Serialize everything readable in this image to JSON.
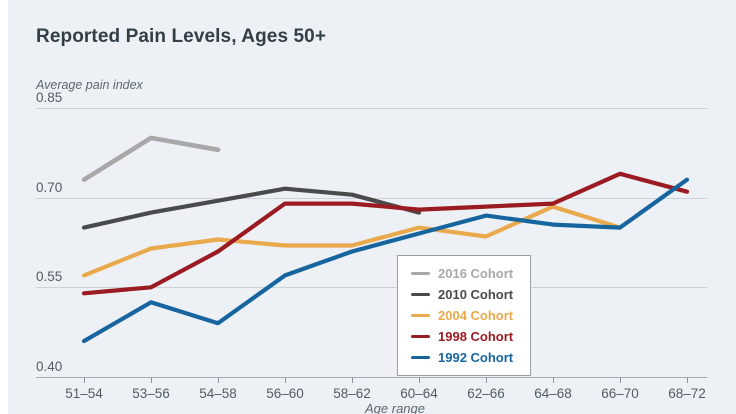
{
  "page": {
    "background": "#edf1f5",
    "left_strip_color": "#ffffff",
    "gridline_color": "#ccd2d8",
    "axis_color": "#a3aab1",
    "tick_color": "#8d949b"
  },
  "chart_data": {
    "type": "line",
    "title": "Reported Pain Levels, Ages 50+",
    "ylabel": "Average pain index",
    "xlabel": "Age range",
    "categories": [
      "51–54",
      "53–56",
      "54–58",
      "56–60",
      "58–62",
      "60–64",
      "62–66",
      "64–68",
      "66–70",
      "68–72"
    ],
    "ytick_labels": [
      "0.85",
      "0.70",
      "0.55",
      "0.40"
    ],
    "ylim": [
      0.4,
      0.85
    ],
    "grid": true,
    "legend_position": "bottom-center-box",
    "series": [
      {
        "name": "2016 Cohort",
        "color": "#a8a8a8",
        "values": [
          0.73,
          0.8,
          0.78,
          null,
          null,
          null,
          null,
          null,
          null,
          null
        ]
      },
      {
        "name": "2010 Cohort",
        "color": "#4a4a4a",
        "values": [
          0.65,
          0.675,
          0.695,
          0.715,
          0.705,
          0.675,
          null,
          null,
          null,
          null
        ]
      },
      {
        "name": "2004 Cohort",
        "color": "#e9aa4d",
        "values": [
          0.57,
          0.615,
          0.63,
          0.62,
          0.62,
          0.65,
          0.635,
          0.685,
          0.65,
          null
        ]
      },
      {
        "name": "1998 Cohort",
        "color": "#9b1b22",
        "values": [
          0.54,
          0.55,
          0.61,
          0.69,
          0.69,
          0.68,
          0.685,
          0.69,
          0.74,
          0.71
        ]
      },
      {
        "name": "1992 Cohort",
        "color": "#17659f",
        "values": [
          0.46,
          0.525,
          0.49,
          0.57,
          0.61,
          0.64,
          0.67,
          0.655,
          0.65,
          0.73
        ]
      }
    ]
  }
}
